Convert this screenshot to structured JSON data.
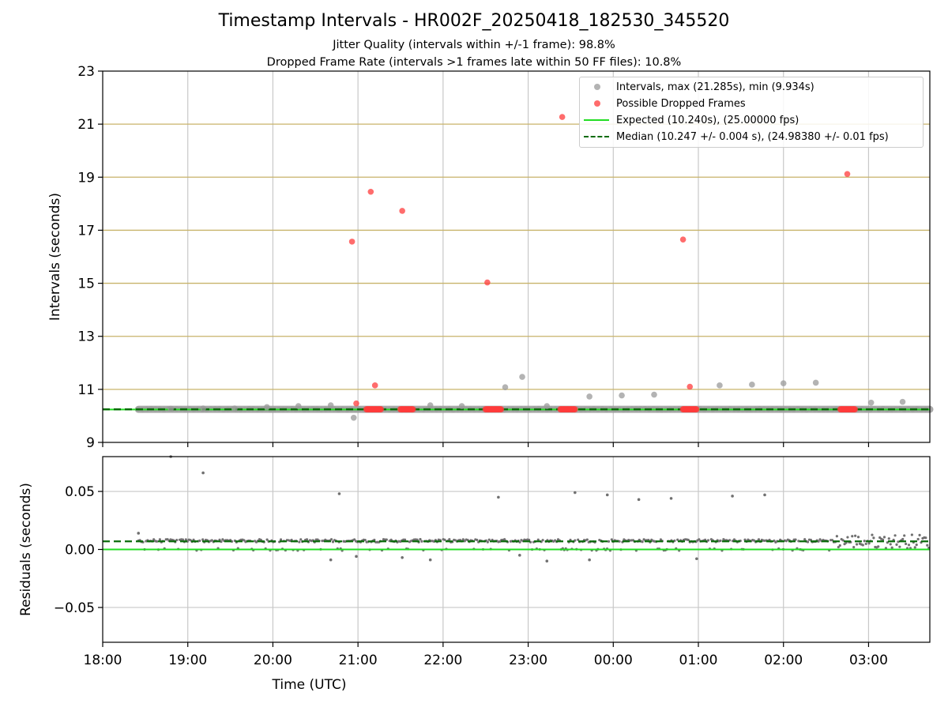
{
  "header": {
    "title": "Timestamp Intervals - HR002F_20250418_182530_345520",
    "subtitle_1": "Jitter Quality (intervals within +/-1 frame): 98.8%",
    "subtitle_2": "Dropped Frame Rate (intervals >1 frames late within 50 FF files): 10.8%"
  },
  "legend": {
    "intervals": "Intervals, max (21.285s), min (9.934s)",
    "dropped": "Possible Dropped Frames",
    "expected": "Expected (10.240s), (25.00000 fps)",
    "median": "Median (10.247 +/- 0.004 s), (24.98380 +/- 0.01 fps)"
  },
  "colors": {
    "intervals": "#999999",
    "dropped": "#ff3b3b",
    "expected": "#22dd22",
    "median": "#0a6b0a",
    "reference_lines": "#c8b36a",
    "grid": "#c8c8c8",
    "residual_points": "#707070"
  },
  "chart_data": [
    {
      "type": "scatter",
      "panel": "top",
      "title": "Timestamp Intervals - HR002F_20250418_182530_345520",
      "xlabel": "",
      "ylabel": "Intervals (seconds)",
      "x_unit": "hours since 18:00 UTC (18:00 to about 03:43)",
      "xlim": [
        0,
        9.72
      ],
      "ylim": [
        9,
        23
      ],
      "yticks": [
        "9",
        "11",
        "13",
        "15",
        "17",
        "19",
        "21",
        "23"
      ],
      "x_grid_hours": [
        1,
        2,
        3,
        4,
        5,
        6,
        7,
        8,
        9
      ],
      "horizontal_reference_lines": [
        11,
        13,
        15,
        17,
        19,
        21
      ],
      "expected_interval": 10.24,
      "median_interval": 10.247,
      "regular_interval_range": [
        0.42,
        9.72
      ],
      "series": [
        {
          "name": "Intervals, max (21.285s), min (9.934s)",
          "points": [
            [
              0.8,
              10.27
            ],
            [
              1.18,
              10.28
            ],
            [
              1.55,
              10.28
            ],
            [
              1.93,
              10.33
            ],
            [
              2.3,
              10.37
            ],
            [
              2.68,
              10.4
            ],
            [
              2.95,
              9.93
            ],
            [
              3.85,
              10.4
            ],
            [
              4.22,
              10.37
            ],
            [
              4.73,
              11.08
            ],
            [
              4.93,
              11.47
            ],
            [
              5.22,
              10.37
            ],
            [
              5.72,
              10.73
            ],
            [
              6.1,
              10.77
            ],
            [
              6.48,
              10.8
            ],
            [
              7.25,
              11.15
            ],
            [
              7.63,
              11.18
            ],
            [
              8.0,
              11.23
            ],
            [
              8.38,
              11.25
            ],
            [
              9.03,
              10.5
            ],
            [
              9.4,
              10.53
            ]
          ]
        },
        {
          "name": "Possible Dropped Frames",
          "points": [
            [
              2.93,
              16.57
            ],
            [
              2.98,
              10.47
            ],
            [
              3.15,
              18.45
            ],
            [
              3.2,
              11.15
            ],
            [
              3.52,
              17.73
            ],
            [
              4.52,
              15.03
            ],
            [
              5.4,
              21.27
            ],
            [
              6.82,
              16.65
            ],
            [
              6.9,
              11.1
            ],
            [
              8.75,
              19.12
            ]
          ],
          "dense_runs_at_median": [
            [
              3.1,
              3.28
            ],
            [
              3.5,
              3.65
            ],
            [
              4.5,
              4.68
            ],
            [
              5.38,
              5.55
            ],
            [
              6.82,
              6.98
            ],
            [
              8.67,
              8.85
            ]
          ]
        }
      ]
    },
    {
      "type": "scatter",
      "panel": "bottom",
      "xlabel": "Time (UTC)",
      "ylabel": "Residuals (seconds)",
      "x_unit": "hours since 18:00 UTC",
      "xlim": [
        0,
        9.72
      ],
      "ylim": [
        -0.08,
        0.08
      ],
      "yticks": [
        "−0.05",
        "0.00",
        "0.05"
      ],
      "xticks": [
        "18:00",
        "19:00",
        "20:00",
        "21:00",
        "22:00",
        "23:00",
        "00:00",
        "01:00",
        "02:00",
        "03:00"
      ],
      "expected_residual": 0.0,
      "median_residual": 0.007,
      "outliers": [
        [
          0.42,
          0.014
        ],
        [
          0.8,
          0.08
        ],
        [
          1.18,
          0.066
        ],
        [
          2.78,
          0.048
        ],
        [
          4.65,
          0.045
        ],
        [
          5.55,
          0.049
        ],
        [
          5.93,
          0.047
        ],
        [
          6.3,
          0.043
        ],
        [
          6.68,
          0.044
        ],
        [
          7.4,
          0.046
        ],
        [
          7.78,
          0.047
        ],
        [
          2.68,
          -0.009
        ],
        [
          2.98,
          -0.006
        ],
        [
          3.52,
          -0.007
        ],
        [
          3.85,
          -0.009
        ],
        [
          4.9,
          -0.005
        ],
        [
          5.22,
          -0.01
        ],
        [
          5.72,
          -0.009
        ],
        [
          6.98,
          -0.008
        ]
      ]
    }
  ]
}
